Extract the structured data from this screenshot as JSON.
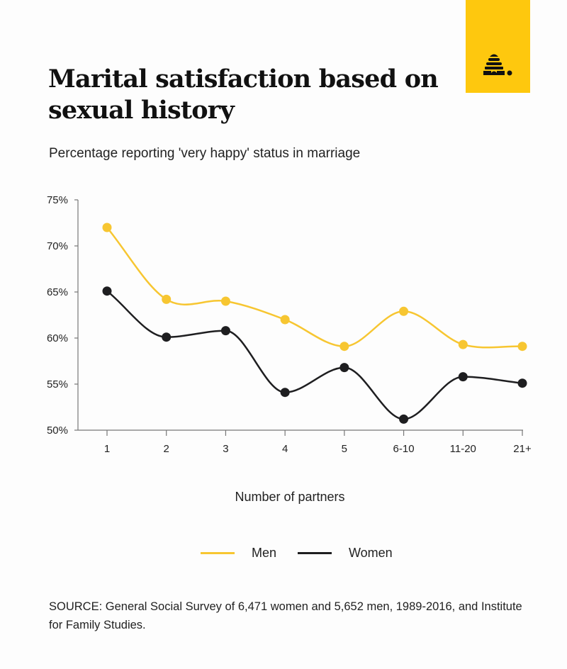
{
  "header": {
    "title": "Marital satisfaction based on sexual history",
    "subtitle": "Percentage reporting 'very happy' status in marriage",
    "logo_icon": "beehive-icon",
    "logo_color": "#fec80e"
  },
  "chart_data": {
    "type": "line",
    "title": "Marital satisfaction based on sexual history",
    "subtitle": "Percentage reporting 'very happy' status in marriage",
    "xlabel": "Number of partners",
    "ylabel": "",
    "categories": [
      "1",
      "2",
      "3",
      "4",
      "5",
      "6-10",
      "11-20",
      "21+"
    ],
    "yticks": [
      50,
      55,
      60,
      65,
      70,
      75
    ],
    "ytick_labels": [
      "50%",
      "55%",
      "60%",
      "65%",
      "70%",
      "75%"
    ],
    "ylim": [
      50,
      75
    ],
    "grid": false,
    "legend_position": "bottom-center",
    "series": [
      {
        "name": "Men",
        "color": "#f7c631",
        "values": [
          72.0,
          64.2,
          64.0,
          62.0,
          59.1,
          62.9,
          59.3,
          59.1
        ]
      },
      {
        "name": "Women",
        "color": "#1e1e20",
        "values": [
          65.1,
          60.1,
          60.8,
          54.1,
          56.8,
          51.2,
          55.8,
          55.1
        ]
      }
    ]
  },
  "footer": {
    "source": "SOURCE: General Social Survey of 6,471 women and 5,652 men, 1989-2016, and Institute for Family Studies."
  }
}
